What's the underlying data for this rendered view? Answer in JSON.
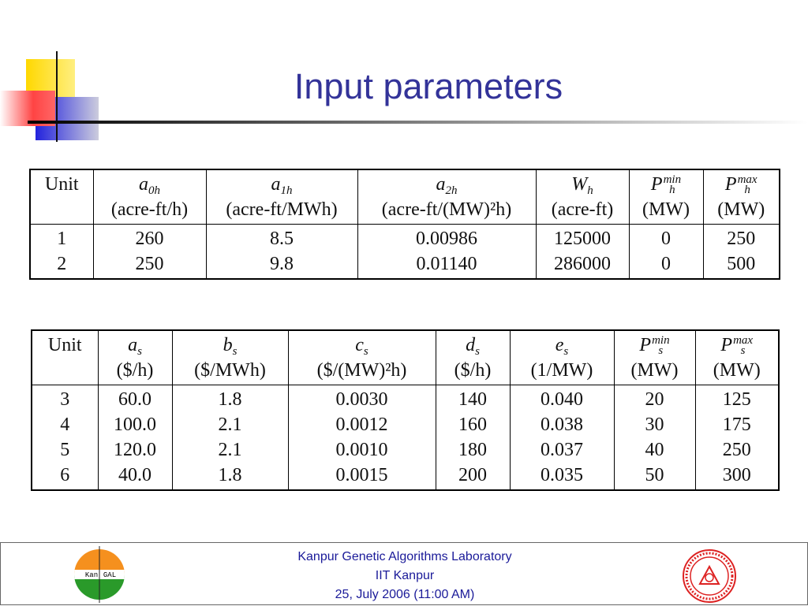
{
  "title": "Input parameters",
  "tables": [
    {
      "header": [
        {
          "label": "Unit"
        },
        {
          "symbol": "a",
          "sub": "0h",
          "unit": "(acre-ft/h)"
        },
        {
          "symbol": "a",
          "sub": "1h",
          "unit": "(acre-ft/MWh)"
        },
        {
          "symbol": "a",
          "sub": "2h",
          "unit": "(acre-ft/(MW)²h)"
        },
        {
          "symbol": "W",
          "sub": "h",
          "unit": "(acre-ft)"
        },
        {
          "symbol": "P",
          "sub": "h",
          "sup": "min",
          "unit": "(MW)"
        },
        {
          "symbol": "P",
          "sub": "h",
          "sup": "max",
          "unit": "(MW)"
        }
      ],
      "rows": [
        [
          "1",
          "260",
          "8.5",
          "0.00986",
          "125000",
          "0",
          "250"
        ],
        [
          "2",
          "250",
          "9.8",
          "0.01140",
          "286000",
          "0",
          "500"
        ]
      ]
    },
    {
      "header": [
        {
          "label": "Unit"
        },
        {
          "symbol": "a",
          "sub": "s",
          "unit": "($/h)"
        },
        {
          "symbol": "b",
          "sub": "s",
          "unit": "($/MWh)"
        },
        {
          "symbol": "c",
          "sub": "s",
          "unit": "($/(MW)²h)"
        },
        {
          "symbol": "d",
          "sub": "s",
          "unit": "($/h)"
        },
        {
          "symbol": "e",
          "sub": "s",
          "unit": "(1/MW)"
        },
        {
          "symbol": "P",
          "sub": "s",
          "sup": "min",
          "unit": "(MW)"
        },
        {
          "symbol": "P",
          "sub": "s",
          "sup": "max",
          "unit": "(MW)"
        }
      ],
      "rows": [
        [
          "3",
          "60.0",
          "1.8",
          "0.0030",
          "140",
          "0.040",
          "20",
          "125"
        ],
        [
          "4",
          "100.0",
          "2.1",
          "0.0012",
          "160",
          "0.038",
          "30",
          "175"
        ],
        [
          "5",
          "120.0",
          "2.1",
          "0.0010",
          "180",
          "0.037",
          "40",
          "250"
        ],
        [
          "6",
          "40.0",
          "1.8",
          "0.0015",
          "200",
          "0.035",
          "50",
          "300"
        ]
      ]
    }
  ],
  "footer": {
    "lines": [
      "Kanpur Genetic Algorithms Laboratory",
      "IIT Kanpur",
      "25, July 2006 (11:00 AM)"
    ],
    "logo": [
      "Kan",
      "GAL"
    ]
  }
}
